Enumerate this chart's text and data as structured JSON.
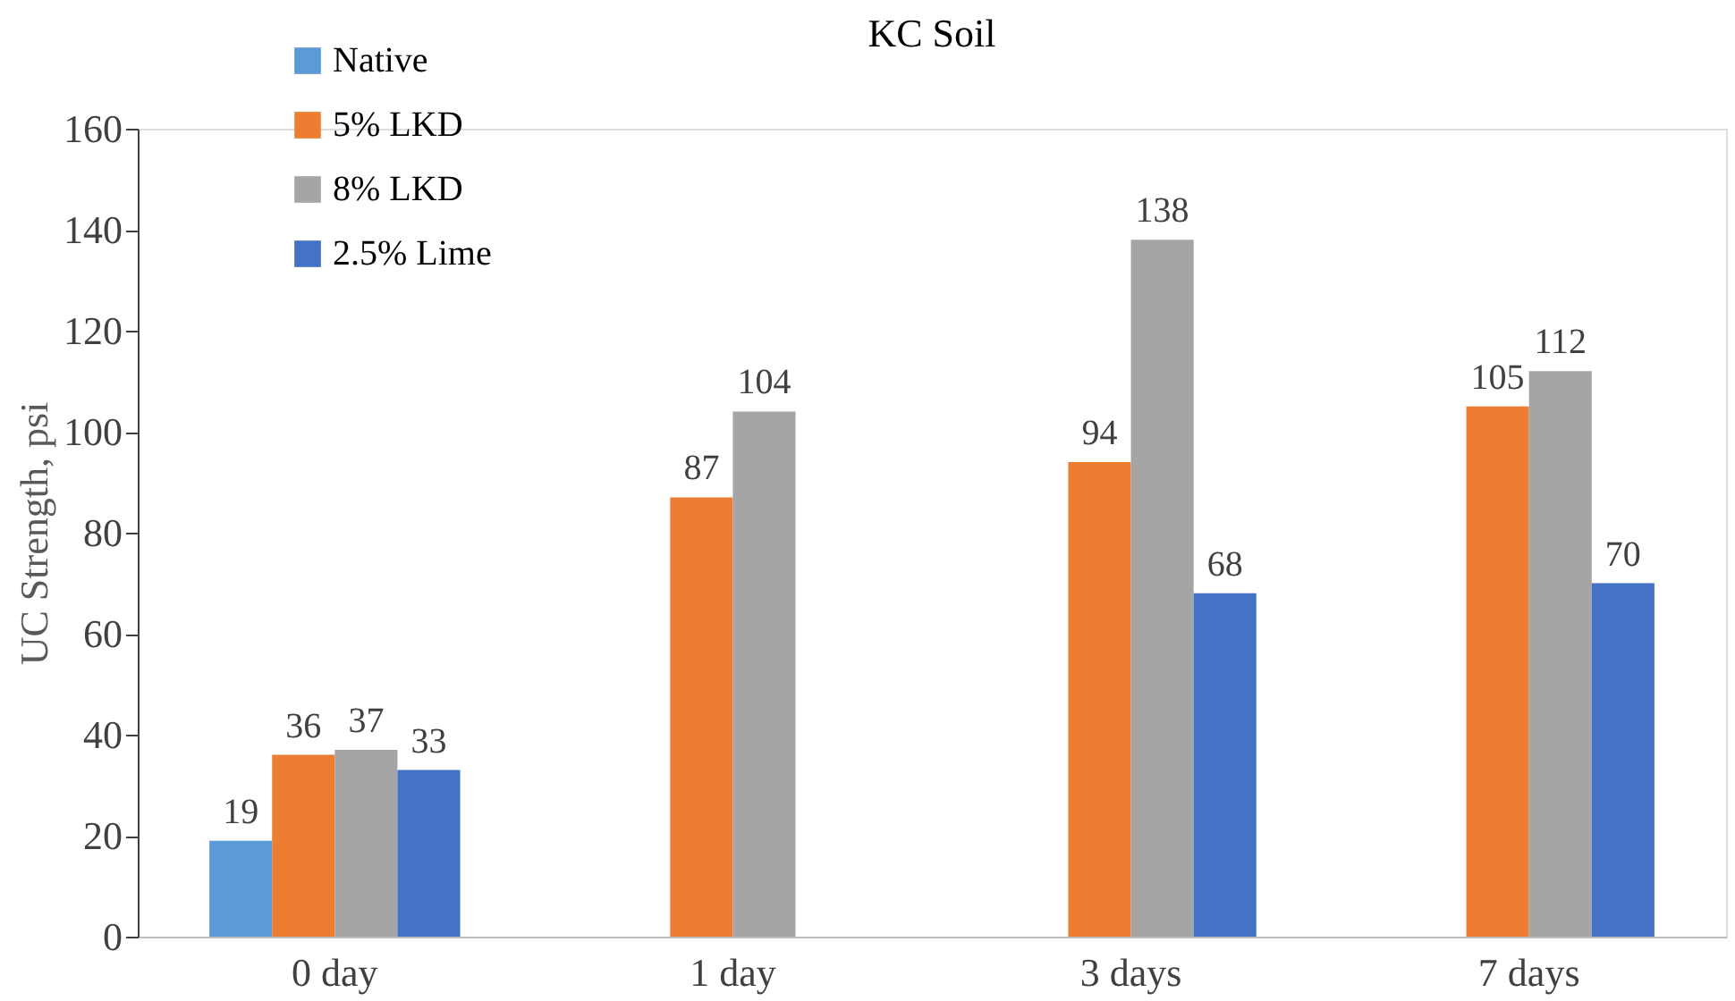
{
  "chart_data": {
    "type": "bar",
    "title": "KC Soil",
    "ylabel": "UC Strength, psi",
    "categories": [
      "0 day",
      "1 day",
      "3 days",
      "7 days"
    ],
    "series": [
      {
        "name": "Native",
        "color": "#5b9bd5",
        "values": [
          19,
          null,
          null,
          null
        ]
      },
      {
        "name": "5% LKD",
        "color": "#ed7d31",
        "values": [
          36,
          87,
          94,
          105
        ]
      },
      {
        "name": "8% LKD",
        "color": "#a5a5a5",
        "values": [
          37,
          104,
          138,
          112
        ]
      },
      {
        "name": "2.5% Lime",
        "color": "#4472c4",
        "values": [
          33,
          null,
          68,
          70
        ]
      }
    ],
    "ylim": [
      0,
      160
    ],
    "yticks": [
      0,
      20,
      40,
      60,
      80,
      100,
      120,
      140,
      160
    ],
    "grid": false,
    "legend": "top left",
    "data_labels": true
  }
}
